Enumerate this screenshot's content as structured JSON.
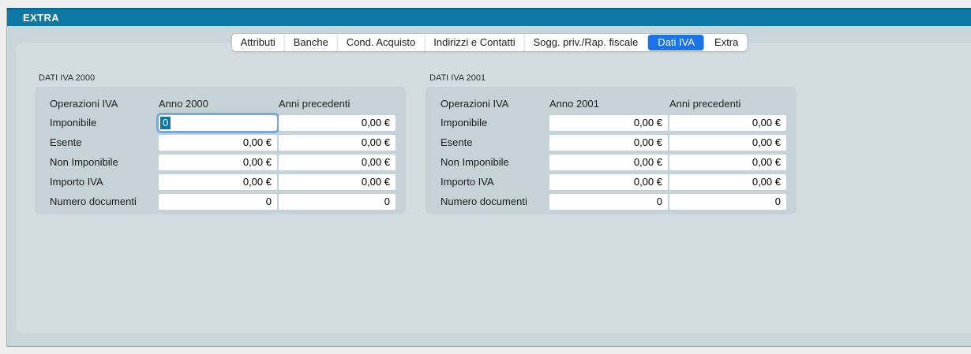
{
  "window": {
    "title": "EXTRA"
  },
  "tabs": {
    "items": [
      {
        "label": "Attributi",
        "selected": false
      },
      {
        "label": "Banche",
        "selected": false
      },
      {
        "label": "Cond. Acquisto",
        "selected": false
      },
      {
        "label": "Indirizzi e Contatti",
        "selected": false
      },
      {
        "label": "Sogg. priv./Rap. fiscale",
        "selected": false
      },
      {
        "label": "Dati IVA",
        "selected": true
      },
      {
        "label": "Extra",
        "selected": false
      }
    ]
  },
  "panels": [
    {
      "title": "DATI IVA 2000",
      "columns": [
        "Operazioni IVA",
        "Anno 2000",
        "Anni precedenti"
      ],
      "rows": [
        {
          "label": "Imponibile",
          "values": [
            "0",
            "0,00 €"
          ],
          "focused_first_field": true
        },
        {
          "label": "Esente",
          "values": [
            "0,00 €",
            "0,00 €"
          ]
        },
        {
          "label": "Non Imponibile",
          "values": [
            "0,00 €",
            "0,00 €"
          ]
        },
        {
          "label": "Importo IVA",
          "values": [
            "0,00 €",
            "0,00 €"
          ]
        },
        {
          "label": "Numero documenti",
          "values": [
            "0",
            "0"
          ]
        }
      ]
    },
    {
      "title": "DATI IVA 2001",
      "columns": [
        "Operazioni IVA",
        "Anno 2001",
        "Anni precedenti"
      ],
      "rows": [
        {
          "label": "Imponibile",
          "values": [
            "0,00 €",
            "0,00 €"
          ]
        },
        {
          "label": "Esente",
          "values": [
            "0,00 €",
            "0,00 €"
          ]
        },
        {
          "label": "Non Imponibile",
          "values": [
            "0,00 €",
            "0,00 €"
          ]
        },
        {
          "label": "Importo IVA",
          "values": [
            "0,00 €",
            "0,00 €"
          ]
        },
        {
          "label": "Numero documenti",
          "values": [
            "0",
            "0"
          ]
        }
      ]
    }
  ],
  "colors": {
    "titlebar": "#0d78a3",
    "window_body": "#c9d6da",
    "content_panel": "#d2dce1",
    "groupbox": "#c5d3d9",
    "tab_selected": "#1b73e8",
    "focus_ring": "#7aa7db",
    "text_selection": "#0f76a3"
  }
}
